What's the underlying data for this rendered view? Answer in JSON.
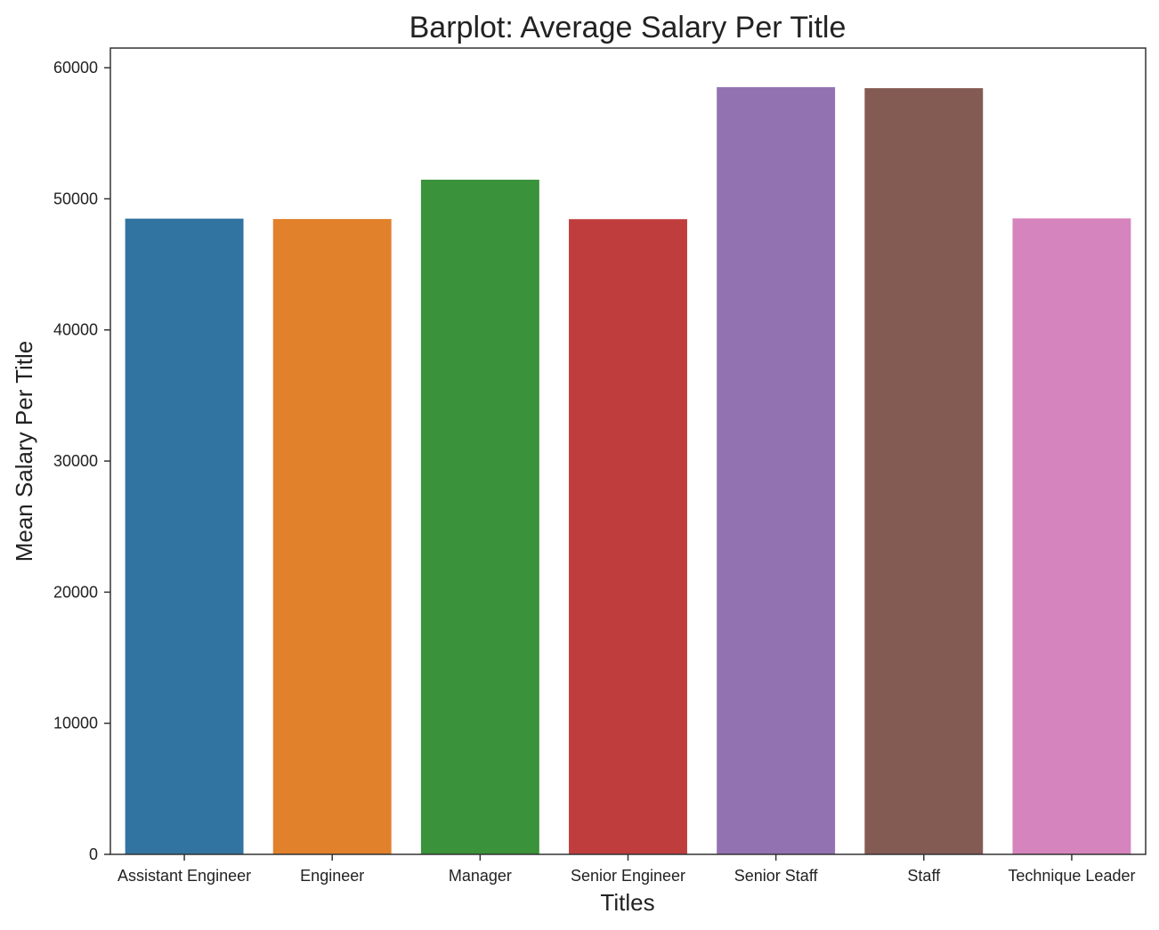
{
  "chart_data": {
    "type": "bar",
    "title": "Barplot: Average Salary Per Title",
    "xlabel": "Titles",
    "ylabel": "Mean Salary Per Title",
    "categories": [
      "Assistant Engineer",
      "Engineer",
      "Manager",
      "Senior Engineer",
      "Senior Staff",
      "Staff",
      "Technique Leader"
    ],
    "values": [
      48490,
      48460,
      51460,
      48450,
      58520,
      58440,
      48510
    ],
    "colors": [
      "#3274a1",
      "#e1812c",
      "#3a923a",
      "#c03d3e",
      "#9372b2",
      "#845b53",
      "#d684bd"
    ],
    "ylim": [
      0,
      61500
    ],
    "yticks": [
      0,
      10000,
      20000,
      30000,
      40000,
      50000,
      60000
    ],
    "ytick_labels": [
      "0",
      "10000",
      "20000",
      "30000",
      "40000",
      "50000",
      "60000"
    ],
    "grid": false,
    "legend": "none"
  }
}
